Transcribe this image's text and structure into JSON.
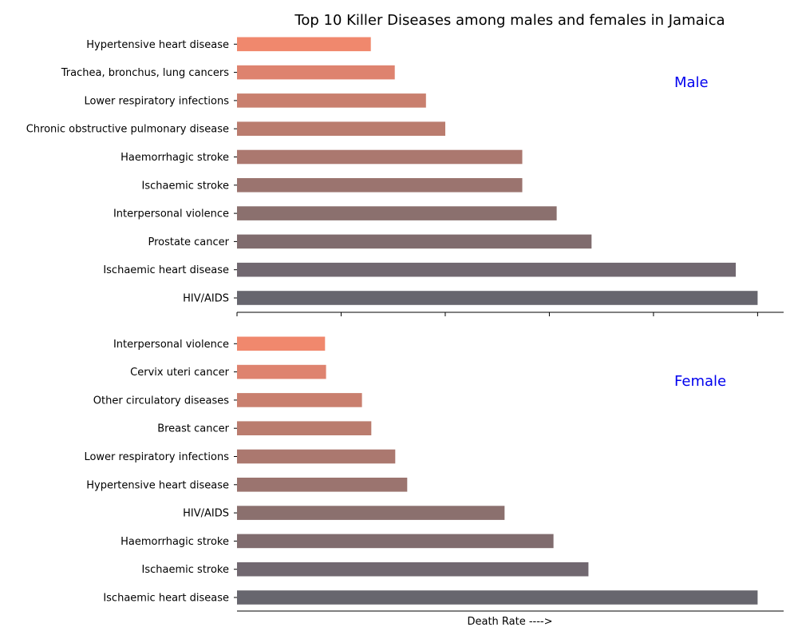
{
  "chart_data": {
    "title": "Top 10 Killer Diseases among males and females in Jamaica",
    "xlabel": "Death Rate ---->",
    "type": "bar",
    "orientation": "horizontal",
    "panels": [
      {
        "label": "Male",
        "label_color": "#0000ee",
        "categories": [
          "HIV/AIDS",
          "Ischaemic heart disease",
          "Prostate cancer",
          "Interpersonal violence",
          "Ischaemic stroke",
          "Haemorrhagic stroke",
          "Chronic obstructive pulmonary disease",
          "Lower respiratory infections",
          "Trachea, bronchus, lung cancers",
          "Hypertensive heart disease"
        ],
        "values": [
          100,
          95.8,
          68.1,
          61.4,
          54.8,
          54.8,
          40.0,
          36.3,
          30.3,
          25.7
        ],
        "xlim": [
          0,
          105
        ]
      },
      {
        "label": "Female",
        "label_color": "#0000ee",
        "categories": [
          "Ischaemic heart disease",
          "Ischaemic stroke",
          "Haemorrhagic stroke",
          "HIV/AIDS",
          "Hypertensive heart disease",
          "Lower respiratory infections",
          "Breast cancer",
          "Other circulatory diseases",
          "Cervix uteri cancer",
          "Interpersonal violence"
        ],
        "values": [
          100,
          67.5,
          60.8,
          51.4,
          32.7,
          30.4,
          25.8,
          24.0,
          17.1,
          16.9
        ],
        "xlim": [
          0,
          105
        ]
      }
    ],
    "bar_colors": [
      "#67666e",
      "#716870",
      "#806c6e",
      "#8b706e",
      "#9b746f",
      "#ab786f",
      "#ba7c6e",
      "#c97f6e",
      "#de836f",
      "#f0886d"
    ],
    "grid": false,
    "legend": "none"
  }
}
